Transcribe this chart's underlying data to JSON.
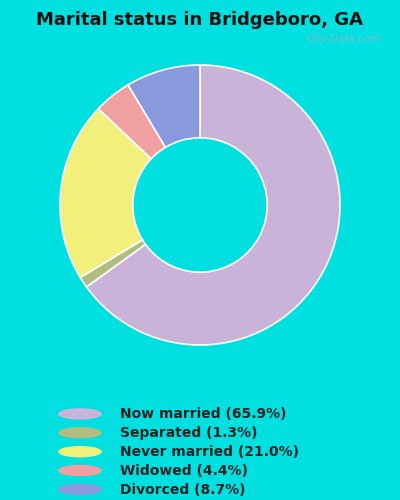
{
  "title": "Marital status in Bridgeboro, GA",
  "slices": [
    65.9,
    1.3,
    21.0,
    4.4,
    8.7
  ],
  "labels": [
    "Now married (65.9%)",
    "Separated (1.3%)",
    "Never married (21.0%)",
    "Widowed (4.4%)",
    "Divorced (8.7%)"
  ],
  "colors": [
    "#c9b3d9",
    "#b0bc80",
    "#f0f07a",
    "#f0a0a0",
    "#8899dd"
  ],
  "bg_outer": "#00e0e0",
  "bg_inner_color": "#d8eedc",
  "title_fontsize": 13,
  "title_fontweight": "bold",
  "legend_fontsize": 10,
  "watermark": "City-Data.com"
}
